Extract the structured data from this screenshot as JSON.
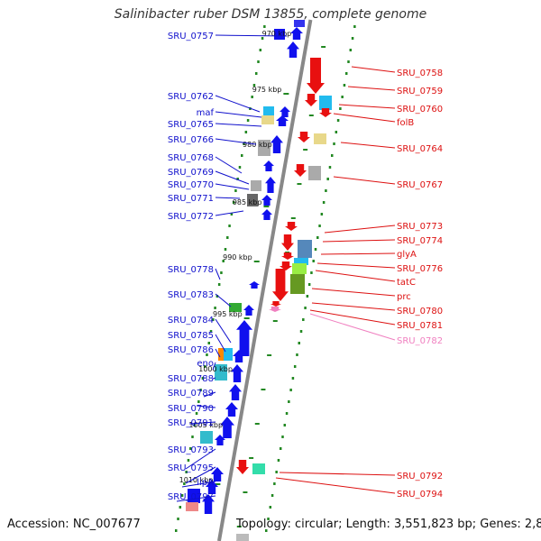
{
  "title": "Salinibacter ruber DSM 13855, complete genome",
  "footer": {
    "accession": "Accession: NC_007677",
    "topology": "Topology: circular; Length: 3,551,823 bp; Genes: 2,849"
  },
  "colors": {
    "forward": "#1010ee",
    "reverse": "#e81010",
    "axis": "#888888",
    "ticks": "#228822",
    "faded": "#f080c0"
  },
  "kbp_ticks": [
    {
      "label": "970 kbp"
    },
    {
      "label": "975 kbp"
    },
    {
      "label": "980 kbp"
    },
    {
      "label": "985 kbp"
    },
    {
      "label": "990 kbp"
    },
    {
      "label": "995 kbp"
    },
    {
      "label": "1000 kbp"
    },
    {
      "label": "1005 kbp"
    },
    {
      "label": "1010 kbp"
    }
  ],
  "left_genes": [
    {
      "label": "SRU_0757"
    },
    {
      "label": "SRU_0762"
    },
    {
      "label": "maf"
    },
    {
      "label": "SRU_0765"
    },
    {
      "label": "SRU_0766"
    },
    {
      "label": "SRU_0768"
    },
    {
      "label": "SRU_0769"
    },
    {
      "label": "SRU_0770"
    },
    {
      "label": "SRU_0771"
    },
    {
      "label": "SRU_0772"
    },
    {
      "label": "SRU_0778"
    },
    {
      "label": "SRU_0783"
    },
    {
      "label": "SRU_0784"
    },
    {
      "label": "SRU_0785"
    },
    {
      "label": "SRU_0786"
    },
    {
      "label": "eno"
    },
    {
      "label": "SRU_0788"
    },
    {
      "label": "SRU_0789"
    },
    {
      "label": "SRU_0790"
    },
    {
      "label": "SRU_0791"
    },
    {
      "label": "SRU_0793"
    },
    {
      "label": "SRU_0795"
    },
    {
      "label": "lipA"
    },
    {
      "label": "SRU_0797"
    }
  ],
  "right_genes": [
    {
      "label": "SRU_0758"
    },
    {
      "label": "SRU_0759"
    },
    {
      "label": "SRU_0760"
    },
    {
      "label": "folB"
    },
    {
      "label": "SRU_0764"
    },
    {
      "label": "SRU_0767"
    },
    {
      "label": "SRU_0773"
    },
    {
      "label": "SRU_0774"
    },
    {
      "label": "glyA"
    },
    {
      "label": "SRU_0776"
    },
    {
      "label": "tatC"
    },
    {
      "label": "prc"
    },
    {
      "label": "SRU_0780"
    },
    {
      "label": "SRU_0781"
    },
    {
      "label": "SRU_0782"
    },
    {
      "label": "SRU_0792"
    },
    {
      "label": "SRU_0794"
    }
  ]
}
